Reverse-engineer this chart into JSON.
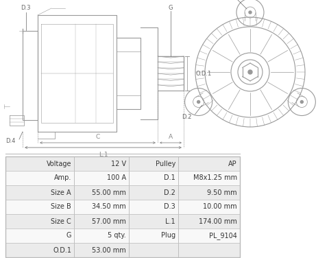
{
  "bg_color": "#ffffff",
  "table_border_color": "#bbbbbb",
  "table_row_bg_odd": "#ebebeb",
  "table_row_bg_even": "#f8f8f8",
  "table_header_bg": "#d5d5d5",
  "table_data": [
    [
      "Voltage",
      "12 V",
      "Pulley",
      "AP"
    ],
    [
      "Amp.",
      "100 A",
      "D.1",
      "M8x1.25 mm"
    ],
    [
      "Size A",
      "55.00 mm",
      "D.2",
      "9.50 mm"
    ],
    [
      "Size B",
      "34.50 mm",
      "D.3",
      "10.00 mm"
    ],
    [
      "Size C",
      "57.00 mm",
      "L.1",
      "174.00 mm"
    ],
    [
      "G",
      "5 qty.",
      "Plug",
      "PL_9104"
    ],
    [
      "O.D.1",
      "53.00 mm",
      "",
      ""
    ]
  ],
  "font_size_table": 7.0,
  "line_color": "#999999",
  "label_color": "#666666",
  "label_fontsize": 6.0,
  "dim_color": "#888888"
}
